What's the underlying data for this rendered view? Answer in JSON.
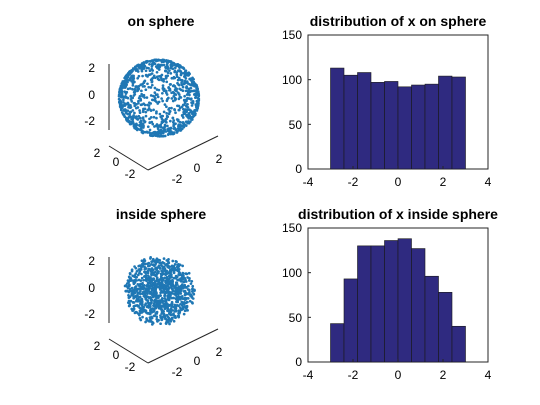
{
  "chart_data": [
    {
      "type": "scatter",
      "title": "on sphere",
      "projection": "3d",
      "distribution": "surface",
      "radius": 3,
      "point_count": 1000,
      "color": "#0072BD",
      "xlim": [
        -3,
        3
      ],
      "ylim": [
        -3,
        3
      ],
      "zlim": [
        -3,
        3
      ],
      "x_ticks": [
        "-2",
        "0",
        "2"
      ],
      "y_ticks": [
        "-2",
        "0",
        "2"
      ],
      "z_ticks": [
        "-2",
        "0",
        "2"
      ]
    },
    {
      "type": "bar",
      "title": "distribution of x on sphere",
      "bin_edges": [
        -3,
        -2.4,
        -1.8,
        -1.2,
        -0.6,
        0,
        0.6,
        1.2,
        1.8,
        2.4,
        3
      ],
      "values": [
        113,
        105,
        108,
        97,
        98,
        92,
        94,
        95,
        104,
        103
      ],
      "xlim": [
        -4,
        4
      ],
      "ylim": [
        0,
        150
      ],
      "x_ticks": [
        "-4",
        "-2",
        "0",
        "2",
        "4"
      ],
      "y_ticks": [
        "0",
        "50",
        "100",
        "150"
      ],
      "grid": false,
      "bar_color": "#2f2a80"
    },
    {
      "type": "scatter",
      "title": "inside sphere",
      "projection": "3d",
      "distribution": "volume",
      "radius": 3,
      "point_count": 1000,
      "color": "#0072BD",
      "xlim": [
        -3,
        3
      ],
      "ylim": [
        -3,
        3
      ],
      "zlim": [
        -3,
        3
      ],
      "x_ticks": [
        "-2",
        "0",
        "2"
      ],
      "y_ticks": [
        "-2",
        "0",
        "2"
      ],
      "z_ticks": [
        "-2",
        "0",
        "2"
      ]
    },
    {
      "type": "bar",
      "title": "distribution of x inside sphere",
      "bin_edges": [
        -3,
        -2.4,
        -1.8,
        -1.2,
        -0.6,
        0,
        0.6,
        1.2,
        1.8,
        2.4,
        3
      ],
      "values": [
        43,
        93,
        130,
        130,
        136,
        138,
        127,
        96,
        78,
        40
      ],
      "xlim": [
        -4,
        4
      ],
      "ylim": [
        0,
        150
      ],
      "x_ticks": [
        "-4",
        "-2",
        "0",
        "2",
        "4"
      ],
      "y_ticks": [
        "0",
        "50",
        "100",
        "150"
      ],
      "grid": false,
      "bar_color": "#2f2a80"
    }
  ]
}
